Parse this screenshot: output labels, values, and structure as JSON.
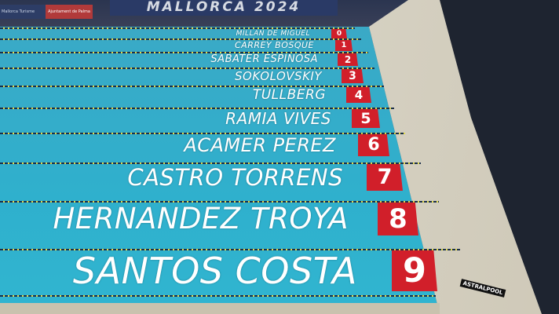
{
  "venue_banner": "MALLORCA 2024",
  "sponsors": [
    "Mallorca Turisme",
    "Ajuntament de Palma"
  ],
  "starting_block_brand": "ASTRALPOOL",
  "colors": {
    "lane_box": "#d11f2a",
    "pool": "#30b0cd",
    "text": "#ffffff"
  },
  "lanes": [
    {
      "lane": "0",
      "name": "MILLAN DE MIGUEL"
    },
    {
      "lane": "1",
      "name": "CARREY BOSQUE"
    },
    {
      "lane": "2",
      "name": "SABATER ESPINOSA"
    },
    {
      "lane": "3",
      "name": "SOKOLOVSKIY"
    },
    {
      "lane": "4",
      "name": "TULLBERG"
    },
    {
      "lane": "5",
      "name": "RAMIA VIVES"
    },
    {
      "lane": "6",
      "name": "ACAMER PEREZ"
    },
    {
      "lane": "7",
      "name": "CASTRO TORRENS"
    },
    {
      "lane": "8",
      "name": "HERNANDEZ TROYA"
    },
    {
      "lane": "9",
      "name": "SANTOS COSTA"
    }
  ]
}
